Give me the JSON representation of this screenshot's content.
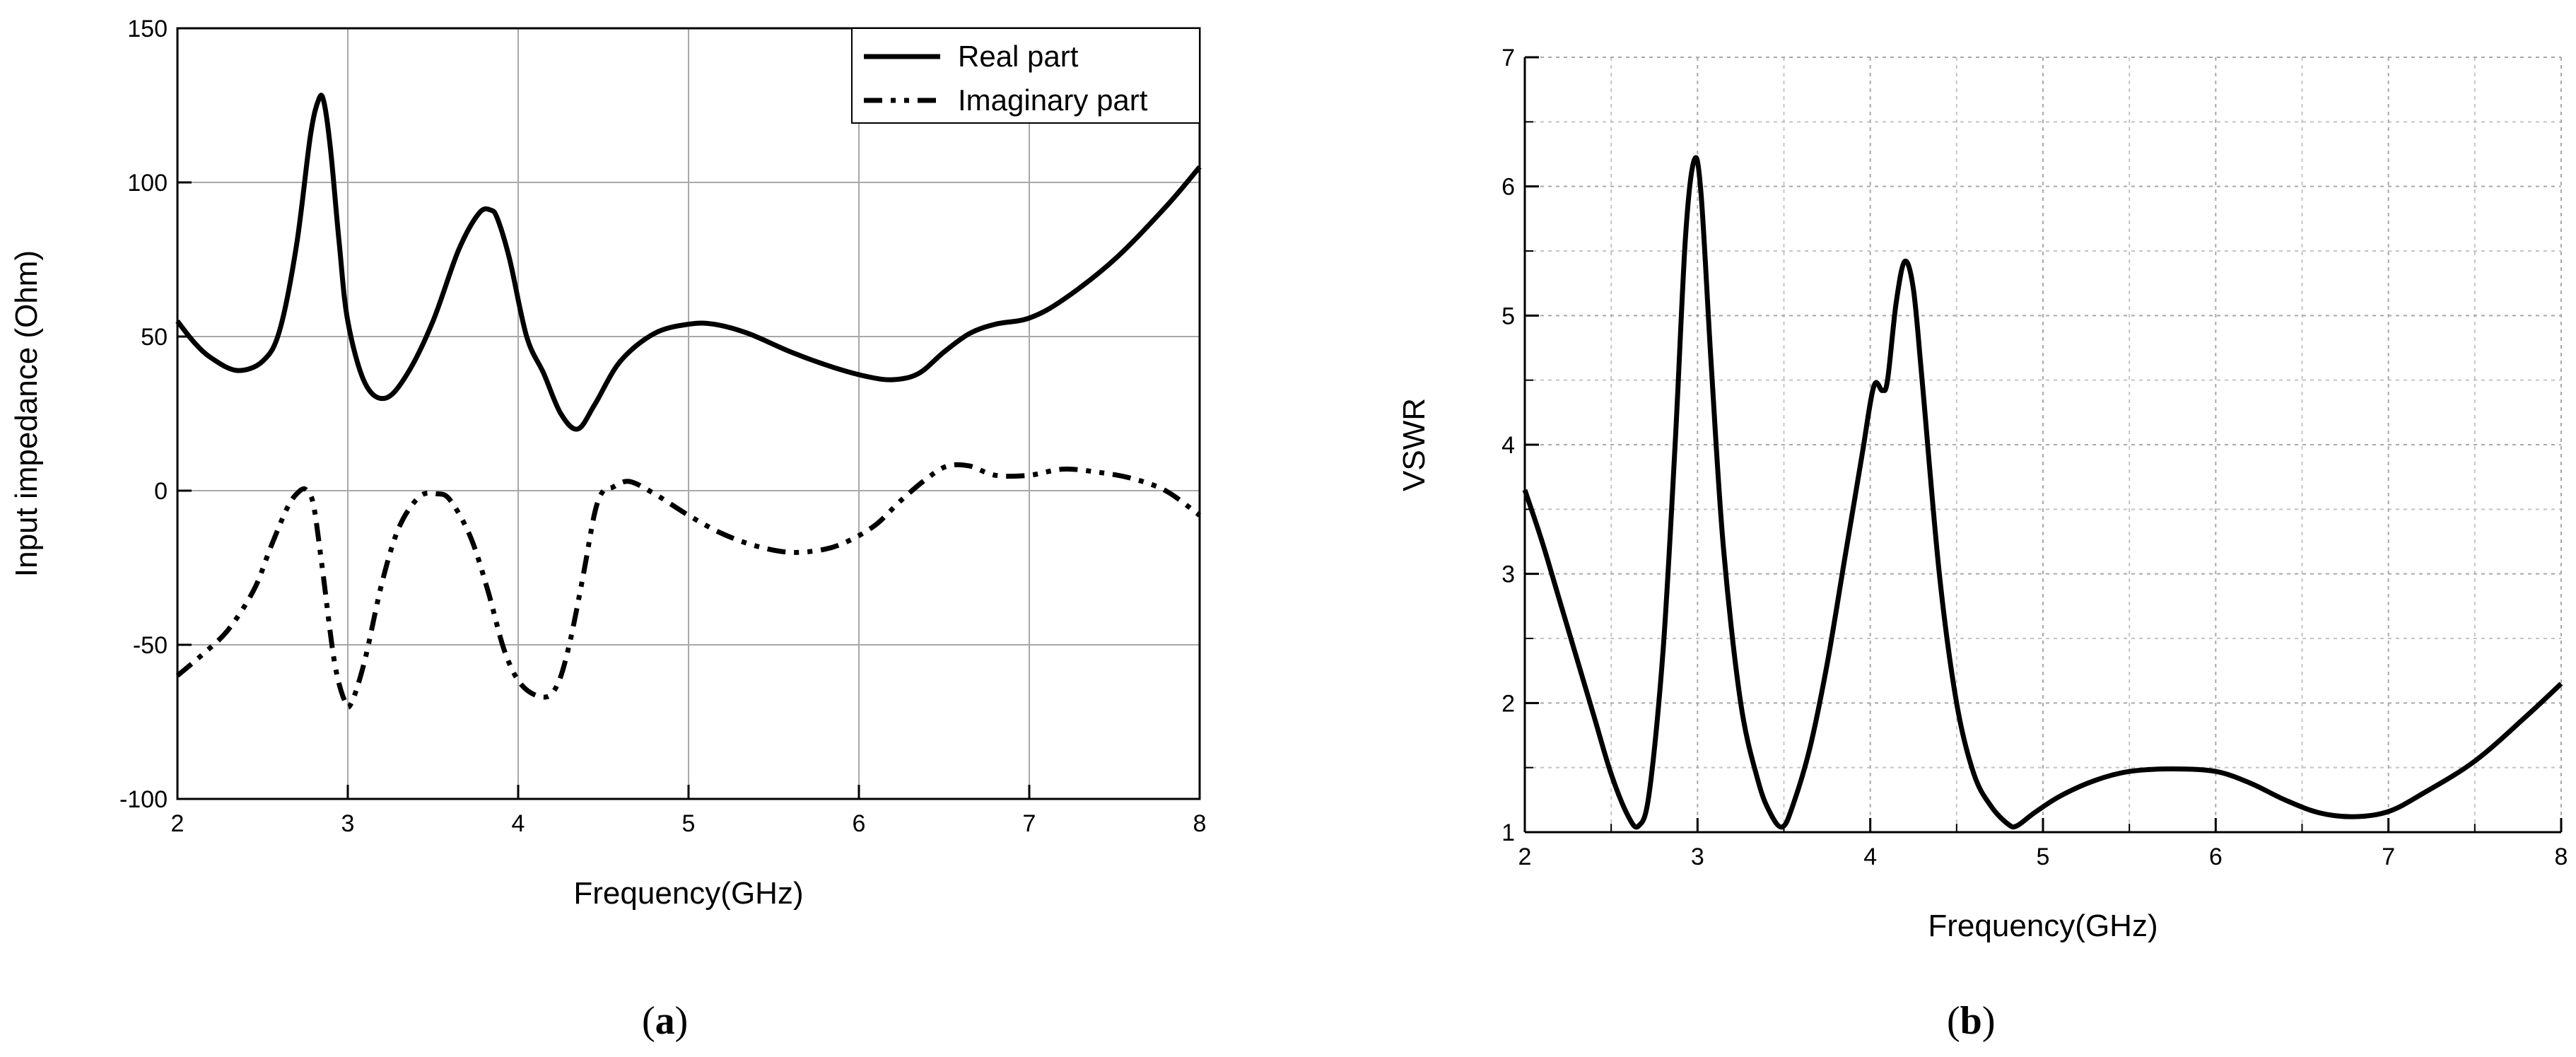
{
  "chart_data": [
    {
      "type": "line",
      "panel_label": "(a)",
      "panel_letter": "a",
      "xlabel": "Frequency(GHz)",
      "ylabel": "Input impedance (Ohm)",
      "xlim": [
        2,
        8
      ],
      "ylim": [
        -100,
        150
      ],
      "x_ticks": [
        2,
        3,
        4,
        5,
        6,
        7,
        8
      ],
      "y_ticks": [
        -100,
        -50,
        0,
        50,
        100,
        150
      ],
      "grid": true,
      "legend_position": "top-right",
      "series": [
        {
          "name": "Real part",
          "style": "solid",
          "color": "#000000",
          "x": [
            2.0,
            2.1,
            2.2,
            2.35,
            2.5,
            2.6,
            2.7,
            2.78,
            2.83,
            2.86,
            2.9,
            2.95,
            3.0,
            3.1,
            3.22,
            3.35,
            3.5,
            3.65,
            3.77,
            3.84,
            3.88,
            3.95,
            4.05,
            4.15,
            4.25,
            4.35,
            4.45,
            4.6,
            4.8,
            5.0,
            5.15,
            5.35,
            5.6,
            5.85,
            6.05,
            6.2,
            6.35,
            6.5,
            6.65,
            6.8,
            7.0,
            7.2,
            7.5,
            7.8,
            8.0
          ],
          "y": [
            55,
            48,
            43,
            39,
            42,
            52,
            80,
            115,
            127,
            126,
            110,
            80,
            55,
            35,
            30,
            38,
            55,
            78,
            90,
            91,
            88,
            75,
            50,
            38,
            25,
            20,
            28,
            42,
            51,
            54,
            54,
            51,
            45,
            40,
            37,
            36,
            38,
            45,
            51,
            54,
            56,
            62,
            75,
            92,
            105
          ]
        },
        {
          "name": "Imaginary part",
          "style": "dash-dot-dot",
          "color": "#000000",
          "x": [
            2.0,
            2.15,
            2.3,
            2.45,
            2.55,
            2.65,
            2.72,
            2.76,
            2.8,
            2.85,
            2.92,
            2.98,
            3.02,
            3.1,
            3.2,
            3.3,
            3.42,
            3.52,
            3.6,
            3.72,
            3.82,
            3.92,
            4.02,
            4.15,
            4.23,
            4.3,
            4.38,
            4.45,
            4.5,
            4.55,
            4.65,
            4.8,
            5.0,
            5.2,
            5.4,
            5.6,
            5.8,
            5.95,
            6.1,
            6.25,
            6.4,
            6.52,
            6.65,
            6.8,
            7.0,
            7.2,
            7.4,
            7.6,
            7.8,
            8.0
          ],
          "y": [
            -60,
            -53,
            -45,
            -32,
            -18,
            -5,
            0,
            0,
            -5,
            -25,
            -55,
            -68,
            -69,
            -55,
            -30,
            -12,
            -2,
            -1,
            -3,
            -15,
            -32,
            -52,
            -63,
            -67,
            -63,
            -50,
            -28,
            -7,
            0,
            1,
            3,
            -1,
            -8,
            -14,
            -18,
            -20,
            -19,
            -16,
            -11,
            -3,
            4,
            8,
            8,
            5,
            5,
            7,
            6,
            4,
            0,
            -8
          ]
        }
      ]
    },
    {
      "type": "line",
      "panel_label": "(b)",
      "panel_letter": "b",
      "xlabel": "Frequency(GHz)",
      "ylabel": "VSWR",
      "xlim": [
        2,
        8
      ],
      "ylim": [
        1,
        7
      ],
      "x_ticks": [
        2,
        3,
        4,
        5,
        6,
        7,
        8
      ],
      "y_ticks": [
        1,
        2,
        3,
        4,
        5,
        6,
        7
      ],
      "grid": true,
      "series": [
        {
          "style": "solid",
          "color": "#000000",
          "x": [
            2.0,
            2.1,
            2.2,
            2.3,
            2.4,
            2.5,
            2.6,
            2.66,
            2.72,
            2.8,
            2.87,
            2.93,
            2.98,
            3.02,
            3.08,
            3.15,
            3.25,
            3.35,
            3.42,
            3.49,
            3.55,
            3.65,
            3.75,
            3.85,
            3.95,
            4.02,
            4.07,
            4.1,
            4.15,
            4.2,
            4.25,
            4.3,
            4.4,
            4.5,
            4.6,
            4.7,
            4.8,
            4.85,
            4.95,
            5.1,
            5.3,
            5.5,
            5.75,
            6.0,
            6.2,
            6.4,
            6.6,
            6.8,
            7.0,
            7.2,
            7.5,
            7.8,
            8.0
          ],
          "y": [
            3.65,
            3.25,
            2.8,
            2.35,
            1.9,
            1.45,
            1.12,
            1.05,
            1.3,
            2.4,
            4.0,
            5.6,
            6.2,
            5.95,
            4.6,
            3.2,
            2.0,
            1.4,
            1.15,
            1.04,
            1.2,
            1.65,
            2.3,
            3.1,
            3.9,
            4.45,
            4.42,
            4.5,
            5.1,
            5.42,
            5.2,
            4.5,
            3.0,
            2.0,
            1.45,
            1.2,
            1.06,
            1.05,
            1.15,
            1.28,
            1.4,
            1.47,
            1.49,
            1.47,
            1.38,
            1.25,
            1.15,
            1.12,
            1.16,
            1.3,
            1.55,
            1.9,
            2.15
          ]
        }
      ]
    }
  ]
}
